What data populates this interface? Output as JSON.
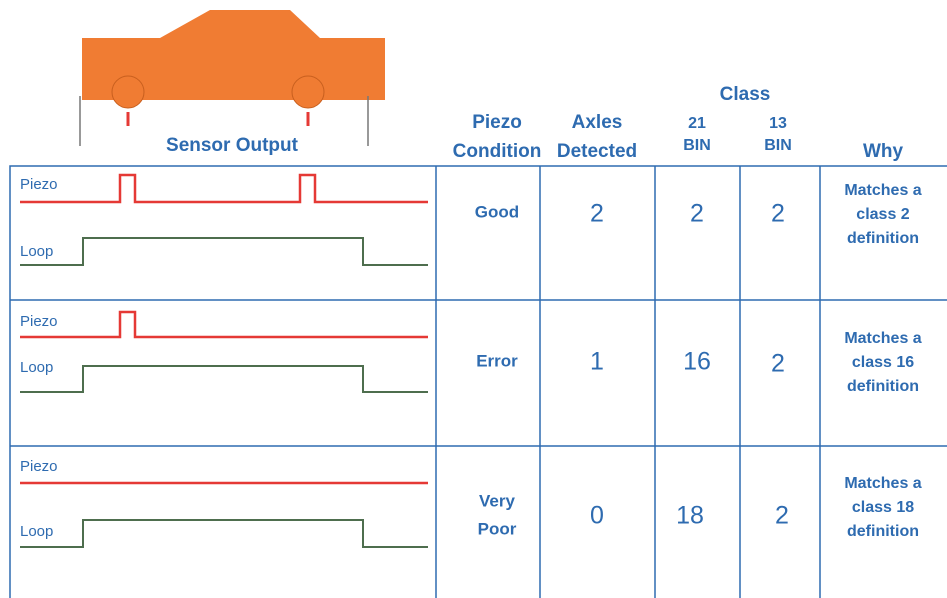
{
  "header": {
    "sensor": "Sensor Output",
    "condition": [
      "Piezo",
      "Condition"
    ],
    "axles": [
      "Axles",
      "Detected"
    ],
    "class": "Class",
    "bin21": [
      "21",
      "BIN"
    ],
    "bin13": [
      "13",
      "BIN"
    ],
    "why": "Why"
  },
  "rows": [
    {
      "piezo_label": "Piezo",
      "loop_label": "Loop",
      "condition": [
        "Good"
      ],
      "axles": 2,
      "bin21": 2,
      "bin13": 2,
      "why": [
        "Matches a",
        "class 2",
        "definition"
      ]
    },
    {
      "piezo_label": "Piezo",
      "loop_label": "Loop",
      "condition": [
        "Error"
      ],
      "axles": 1,
      "bin21": 16,
      "bin13": 2,
      "why": [
        "Matches a",
        "class 16",
        "definition"
      ]
    },
    {
      "piezo_label": "Piezo",
      "loop_label": "Loop",
      "condition": [
        "Very",
        "Poor"
      ],
      "axles": 0,
      "bin21": 18,
      "bin13": 2,
      "why": [
        "Matches a",
        "class 18",
        "definition"
      ]
    }
  ]
}
